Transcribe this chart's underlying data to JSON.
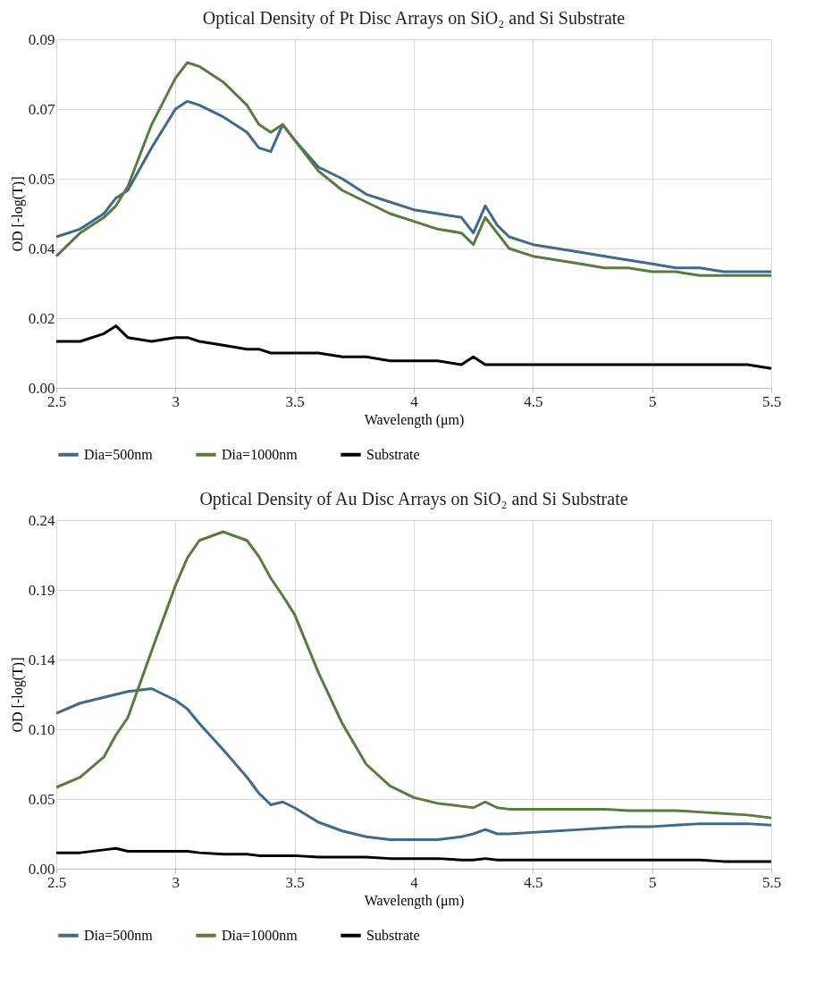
{
  "chart_data": [
    {
      "type": "line",
      "title": "Optical Density of Pt Disc Arrays on SiO₂ and Si Substrate",
      "xlabel": "Wavelength (μm)",
      "ylabel": "OD [-log(T)]",
      "x": [
        2.5,
        2.6,
        2.7,
        2.75,
        2.8,
        2.9,
        3.0,
        3.05,
        3.1,
        3.2,
        3.3,
        3.35,
        3.4,
        3.45,
        3.5,
        3.6,
        3.7,
        3.8,
        3.9,
        4.0,
        4.1,
        4.2,
        4.25,
        4.3,
        4.35,
        4.4,
        4.5,
        4.6,
        4.7,
        4.8,
        4.9,
        5.0,
        5.1,
        5.2,
        5.3,
        5.4,
        5.5
      ],
      "series": [
        {
          "name": "Dia=500nm",
          "color": "#41698a",
          "values": [
            0.039,
            0.041,
            0.045,
            0.049,
            0.051,
            0.062,
            0.072,
            0.074,
            0.073,
            0.07,
            0.066,
            0.062,
            0.061,
            0.068,
            0.064,
            0.057,
            0.054,
            0.05,
            0.048,
            0.046,
            0.045,
            0.044,
            0.04,
            0.047,
            0.042,
            0.039,
            0.037,
            0.036,
            0.035,
            0.034,
            0.033,
            0.032,
            0.031,
            0.031,
            0.03,
            0.03,
            0.03
          ]
        },
        {
          "name": "Dia=1000nm",
          "color": "#5a7a40",
          "values": [
            0.034,
            0.04,
            0.044,
            0.047,
            0.052,
            0.068,
            0.08,
            0.084,
            0.083,
            0.079,
            0.073,
            0.068,
            0.066,
            0.068,
            0.064,
            0.056,
            0.051,
            0.048,
            0.045,
            0.043,
            0.041,
            0.04,
            0.037,
            0.044,
            0.04,
            0.036,
            0.034,
            0.033,
            0.032,
            0.031,
            0.031,
            0.03,
            0.03,
            0.029,
            0.029,
            0.029,
            0.029
          ]
        },
        {
          "name": "Substrate",
          "color": "#000000",
          "values": [
            0.012,
            0.012,
            0.014,
            0.016,
            0.013,
            0.012,
            0.013,
            0.013,
            0.012,
            0.011,
            0.01,
            0.01,
            0.009,
            0.009,
            0.009,
            0.009,
            0.008,
            0.008,
            0.007,
            0.007,
            0.007,
            0.006,
            0.008,
            0.006,
            0.006,
            0.006,
            0.006,
            0.006,
            0.006,
            0.006,
            0.006,
            0.006,
            0.006,
            0.006,
            0.006,
            0.006,
            0.005
          ]
        }
      ],
      "xlim": [
        2.5,
        5.5
      ],
      "xticks": [
        2.5,
        3,
        3.5,
        4,
        4.5,
        5,
        5.5
      ],
      "ylim": [
        0,
        0.09
      ],
      "yticks": [
        {
          "value": 0,
          "label": "0.00"
        },
        {
          "value": 0.018,
          "label": "0.02"
        },
        {
          "value": 0.036,
          "label": "0.04"
        },
        {
          "value": 0.054,
          "label": "0.05"
        },
        {
          "value": 0.072,
          "label": "0.07"
        },
        {
          "value": 0.09,
          "label": "0.09"
        }
      ],
      "grid": true,
      "legend": "bottom",
      "marker": "none",
      "line_style": "solid"
    },
    {
      "type": "line",
      "title": "Optical Density of Au Disc Arrays on SiO₂ and Si Substrate",
      "xlabel": "Wavelength (μm)",
      "ylabel": "OD [-log(T)]",
      "x": [
        2.5,
        2.6,
        2.7,
        2.75,
        2.8,
        2.9,
        3.0,
        3.05,
        3.1,
        3.2,
        3.3,
        3.35,
        3.4,
        3.45,
        3.5,
        3.6,
        3.7,
        3.8,
        3.9,
        4.0,
        4.1,
        4.2,
        4.25,
        4.3,
        4.35,
        4.4,
        4.5,
        4.6,
        4.7,
        4.8,
        4.9,
        5.0,
        5.1,
        5.2,
        5.3,
        5.4,
        5.5
      ],
      "series": [
        {
          "name": "Dia=500nm",
          "color": "#41698a",
          "values": [
            0.107,
            0.114,
            0.118,
            0.12,
            0.122,
            0.124,
            0.116,
            0.11,
            0.1,
            0.082,
            0.063,
            0.052,
            0.044,
            0.046,
            0.042,
            0.032,
            0.026,
            0.022,
            0.02,
            0.02,
            0.02,
            0.022,
            0.024,
            0.027,
            0.024,
            0.024,
            0.025,
            0.026,
            0.027,
            0.028,
            0.029,
            0.029,
            0.03,
            0.031,
            0.031,
            0.031,
            0.03
          ]
        },
        {
          "name": "Dia=1000nm",
          "color": "#5a7a40",
          "values": [
            0.056,
            0.063,
            0.077,
            0.092,
            0.104,
            0.15,
            0.195,
            0.214,
            0.226,
            0.232,
            0.226,
            0.215,
            0.2,
            0.188,
            0.175,
            0.135,
            0.1,
            0.072,
            0.057,
            0.049,
            0.045,
            0.043,
            0.042,
            0.046,
            0.042,
            0.041,
            0.041,
            0.041,
            0.041,
            0.041,
            0.04,
            0.04,
            0.04,
            0.039,
            0.038,
            0.037,
            0.035
          ]
        },
        {
          "name": "Substrate",
          "color": "#000000",
          "values": [
            0.011,
            0.011,
            0.013,
            0.014,
            0.012,
            0.012,
            0.012,
            0.012,
            0.011,
            0.01,
            0.01,
            0.009,
            0.009,
            0.009,
            0.009,
            0.008,
            0.008,
            0.008,
            0.007,
            0.007,
            0.007,
            0.006,
            0.006,
            0.007,
            0.006,
            0.006,
            0.006,
            0.006,
            0.006,
            0.006,
            0.006,
            0.006,
            0.006,
            0.006,
            0.005,
            0.005,
            0.005
          ]
        }
      ],
      "xlim": [
        2.5,
        5.5
      ],
      "xticks": [
        2.5,
        3,
        3.5,
        4,
        4.5,
        5,
        5.5
      ],
      "ylim": [
        0,
        0.24
      ],
      "yticks": [
        {
          "value": 0,
          "label": "0.00"
        },
        {
          "value": 0.048,
          "label": "0.05"
        },
        {
          "value": 0.096,
          "label": "0.10"
        },
        {
          "value": 0.144,
          "label": "0.14"
        },
        {
          "value": 0.192,
          "label": "0.19"
        },
        {
          "value": 0.24,
          "label": "0.24"
        }
      ],
      "grid": true,
      "legend": "bottom",
      "marker": "none",
      "line_style": "solid"
    }
  ]
}
